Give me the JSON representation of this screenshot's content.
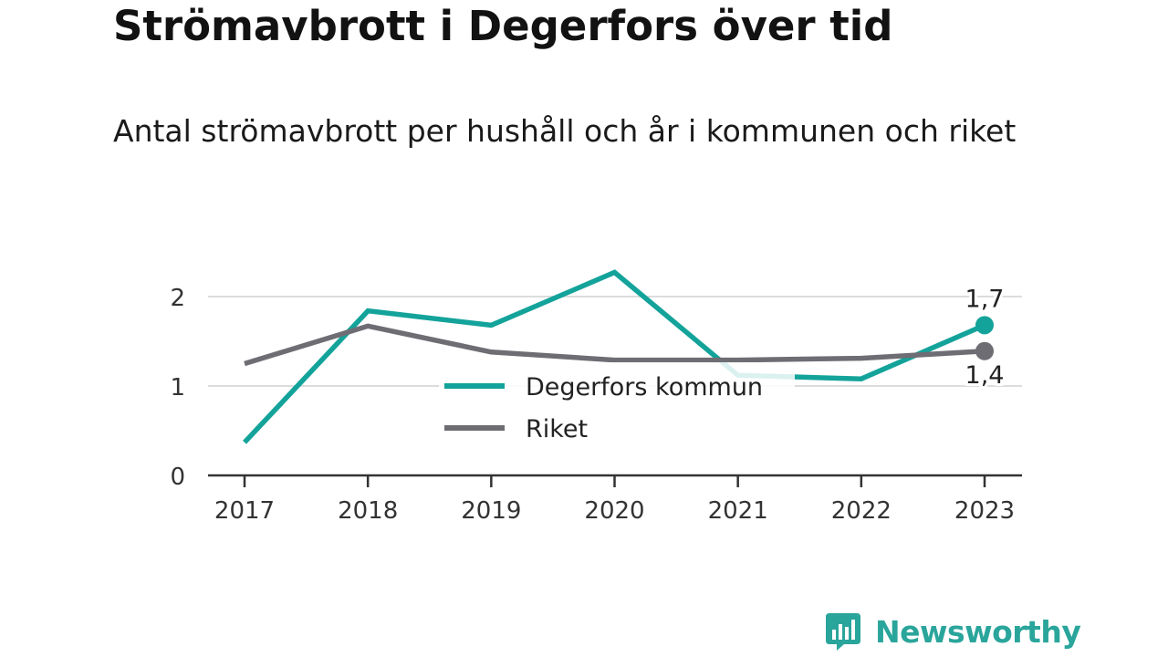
{
  "chart_data": {
    "type": "line",
    "title": "Strömavbrott i Degerfors över tid",
    "subtitle": "Antal strömavbrott per hushåll och år i kommunen och riket",
    "xlabel": "",
    "ylabel": "",
    "categories": [
      "2017",
      "2018",
      "2019",
      "2020",
      "2021",
      "2022",
      "2023"
    ],
    "yticks": [
      "0",
      "1",
      "2"
    ],
    "ylim": [
      0,
      2.4
    ],
    "grid": true,
    "legend": "center",
    "series": [
      {
        "name": "Degerfors kommun",
        "color": "#13a39a",
        "values": [
          0.37,
          1.84,
          1.68,
          2.27,
          1.12,
          1.08,
          1.68
        ],
        "end_label": "1,7"
      },
      {
        "name": "Riket",
        "color": "#6e6d74",
        "values": [
          1.25,
          1.67,
          1.38,
          1.29,
          1.29,
          1.31,
          1.39
        ],
        "end_label": "1,4"
      }
    ]
  },
  "brand": {
    "name": "Newsworthy",
    "icon": "bar-chart-speech-bubble-icon",
    "color": "#2aa59b"
  }
}
